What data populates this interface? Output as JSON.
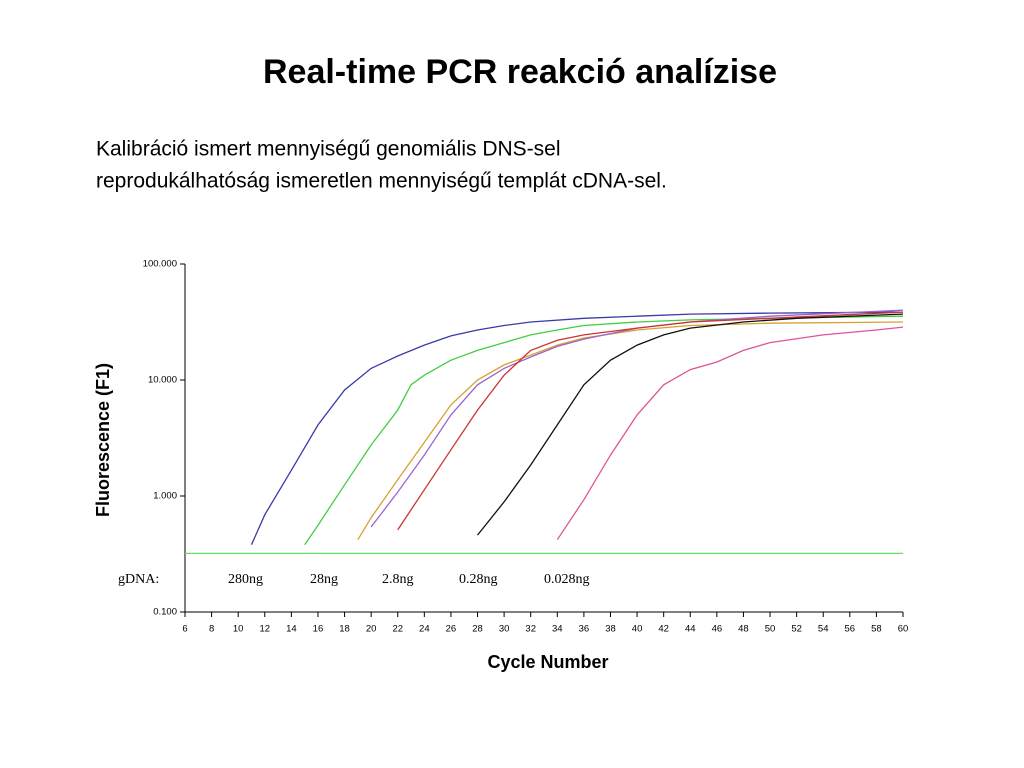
{
  "chart_data": {
    "type": "line",
    "title": "Real-time PCR reakció analízise",
    "subtitle": [
      "Kalibráció ismert mennyiségű genomiális DNS-sel",
      "reprodukálhatóság ismeretlen mennyiségű templát cDNA-sel."
    ],
    "x_label": "Cycle Number",
    "y_label": "Fluorescence (F1)",
    "yscale": "log",
    "xlim": [
      6,
      60
    ],
    "ylim": [
      0.1,
      100
    ],
    "xticks": [
      6,
      8,
      10,
      12,
      14,
      16,
      18,
      20,
      22,
      24,
      26,
      28,
      30,
      32,
      34,
      36,
      38,
      40,
      42,
      44,
      46,
      48,
      50,
      52,
      54,
      56,
      58,
      60
    ],
    "yticks": [
      {
        "value": 100,
        "label": "100.000"
      },
      {
        "value": 10,
        "label": "10.000"
      },
      {
        "value": 1,
        "label": "1.000"
      },
      {
        "value": 0.1,
        "label": "0.100"
      }
    ],
    "threshold": {
      "value": 0.32,
      "color": "#66dd66"
    },
    "annotations": [
      "gDNA:",
      "280ng",
      "28ng",
      "2.8ng",
      "0.28ng",
      "0.028ng"
    ],
    "series": [
      {
        "color": "#3a3aa8",
        "x": [
          11,
          12,
          14,
          16,
          18,
          20,
          22,
          24,
          26,
          28,
          30,
          32,
          36,
          40,
          44,
          50,
          60
        ],
        "values": [
          0.38,
          0.69,
          1.67,
          4.1,
          8.2,
          12.6,
          16.1,
          20,
          24,
          27,
          29.5,
          31.6,
          34,
          35.5,
          37,
          37.7,
          38.5
        ]
      },
      {
        "color": "#44cc44",
        "x": [
          15,
          16,
          18,
          20,
          22,
          23,
          24,
          26,
          28,
          30,
          32,
          34,
          36,
          40,
          44,
          50,
          60
        ],
        "values": [
          0.38,
          0.56,
          1.25,
          2.75,
          5.5,
          9.1,
          11,
          14.8,
          18,
          21,
          24.5,
          27,
          29.5,
          31.6,
          33,
          34,
          35.5
        ]
      },
      {
        "color": "#d9a030",
        "x": [
          19,
          20,
          22,
          24,
          26,
          28,
          30,
          32,
          34,
          36,
          40,
          44,
          50,
          60
        ],
        "values": [
          0.42,
          0.65,
          1.38,
          2.9,
          6.1,
          10,
          13.5,
          16.4,
          20,
          23,
          27,
          29.5,
          30.9,
          31.6
        ]
      },
      {
        "color": "#9966cc",
        "x": [
          20,
          22,
          24,
          26,
          28,
          30,
          32,
          34,
          36,
          40,
          44,
          50,
          60
        ],
        "values": [
          0.54,
          1.08,
          2.25,
          5,
          9.1,
          12.6,
          15.8,
          19.5,
          22.5,
          28,
          31.6,
          35.5,
          40
        ]
      },
      {
        "color": "#cc3333",
        "x": [
          22,
          24,
          26,
          28,
          30,
          32,
          34,
          36,
          40,
          44,
          50,
          60
        ],
        "values": [
          0.51,
          1.13,
          2.5,
          5.5,
          11,
          18,
          22,
          24.5,
          28,
          31.6,
          34,
          38.5
        ]
      },
      {
        "color": "#111111",
        "x": [
          28,
          30,
          32,
          34,
          36,
          38,
          40,
          42,
          44,
          48,
          52,
          60
        ],
        "values": [
          0.46,
          0.89,
          1.85,
          4.1,
          9.1,
          14.8,
          20,
          24.5,
          28,
          31.6,
          34,
          37
        ]
      },
      {
        "color": "#dd5599",
        "x": [
          34,
          36,
          38,
          40,
          42,
          44,
          46,
          48,
          50,
          54,
          58,
          60
        ],
        "values": [
          0.42,
          0.93,
          2.25,
          5,
          9.1,
          12.3,
          14.3,
          18,
          21,
          24.5,
          27,
          28.6
        ]
      }
    ]
  }
}
